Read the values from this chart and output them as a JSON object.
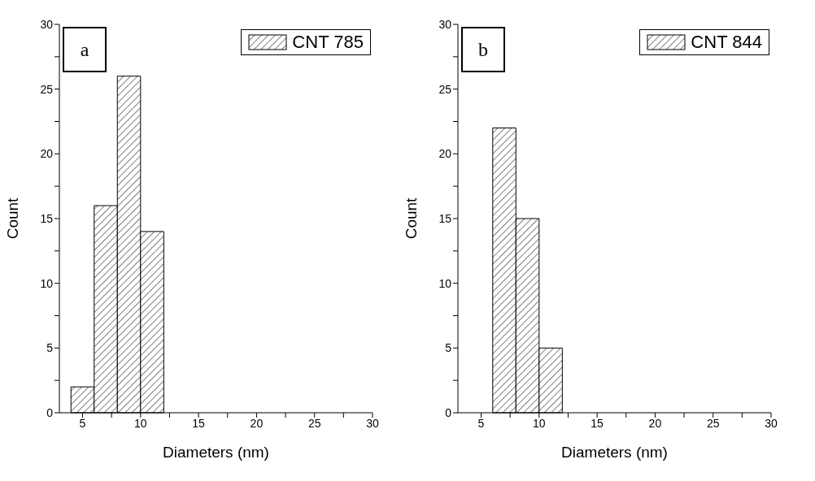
{
  "chart_data": [
    {
      "type": "histogram",
      "xlabel": "Diameters (nm)",
      "ylabel": "Count",
      "annotations": [
        "a"
      ],
      "bins": [
        4,
        6,
        8,
        10,
        12
      ],
      "series": [
        {
          "name": "CNT 785",
          "color": "#000000",
          "values": [
            2,
            16,
            26,
            14
          ]
        }
      ],
      "xlim": [
        3,
        30
      ],
      "xticks": [
        5,
        {
          "value": 7.5,
          "label": null
        },
        10,
        {
          "value": 12.5,
          "label": null
        },
        15,
        {
          "value": 17.5,
          "label": null
        },
        20,
        {
          "value": 22.5,
          "label": null
        },
        25,
        {
          "value": 27.5,
          "label": null
        },
        30
      ],
      "ylim": [
        0,
        30
      ],
      "yticks": [
        0,
        {
          "value": 2.5,
          "label": null
        },
        5,
        {
          "value": 7.5,
          "label": null
        },
        10,
        {
          "value": 12.5,
          "label": null
        },
        15,
        {
          "value": 17.5,
          "label": null
        },
        20,
        {
          "value": 22.5,
          "label": null
        },
        25,
        {
          "value": 27.5,
          "label": null
        },
        30
      ],
      "grid": false,
      "legend": "top right"
    },
    {
      "type": "histogram",
      "xlabel": "Diameters (nm)",
      "ylabel": "Count",
      "annotations": [
        "b"
      ],
      "bins": [
        6,
        8,
        10,
        12
      ],
      "series": [
        {
          "name": "CNT 844",
          "color": "#000000",
          "values": [
            22,
            15,
            5
          ]
        }
      ],
      "xlim": [
        3,
        30
      ],
      "xticks": [
        5,
        {
          "value": 7.5,
          "label": null
        },
        10,
        {
          "value": 12.5,
          "label": null
        },
        15,
        {
          "value": 17.5,
          "label": null
        },
        20,
        {
          "value": 22.5,
          "label": null
        },
        25,
        {
          "value": 27.5,
          "label": null
        },
        30
      ],
      "ylim": [
        0,
        30
      ],
      "yticks": [
        0,
        {
          "value": 2.5,
          "label": null
        },
        5,
        {
          "value": 7.5,
          "label": null
        },
        10,
        {
          "value": 12.5,
          "label": null
        },
        15,
        {
          "value": 17.5,
          "label": null
        },
        20,
        {
          "value": 22.5,
          "label": null
        },
        25,
        {
          "value": 27.5,
          "label": null
        },
        30
      ],
      "grid": false,
      "legend": "top right"
    }
  ]
}
